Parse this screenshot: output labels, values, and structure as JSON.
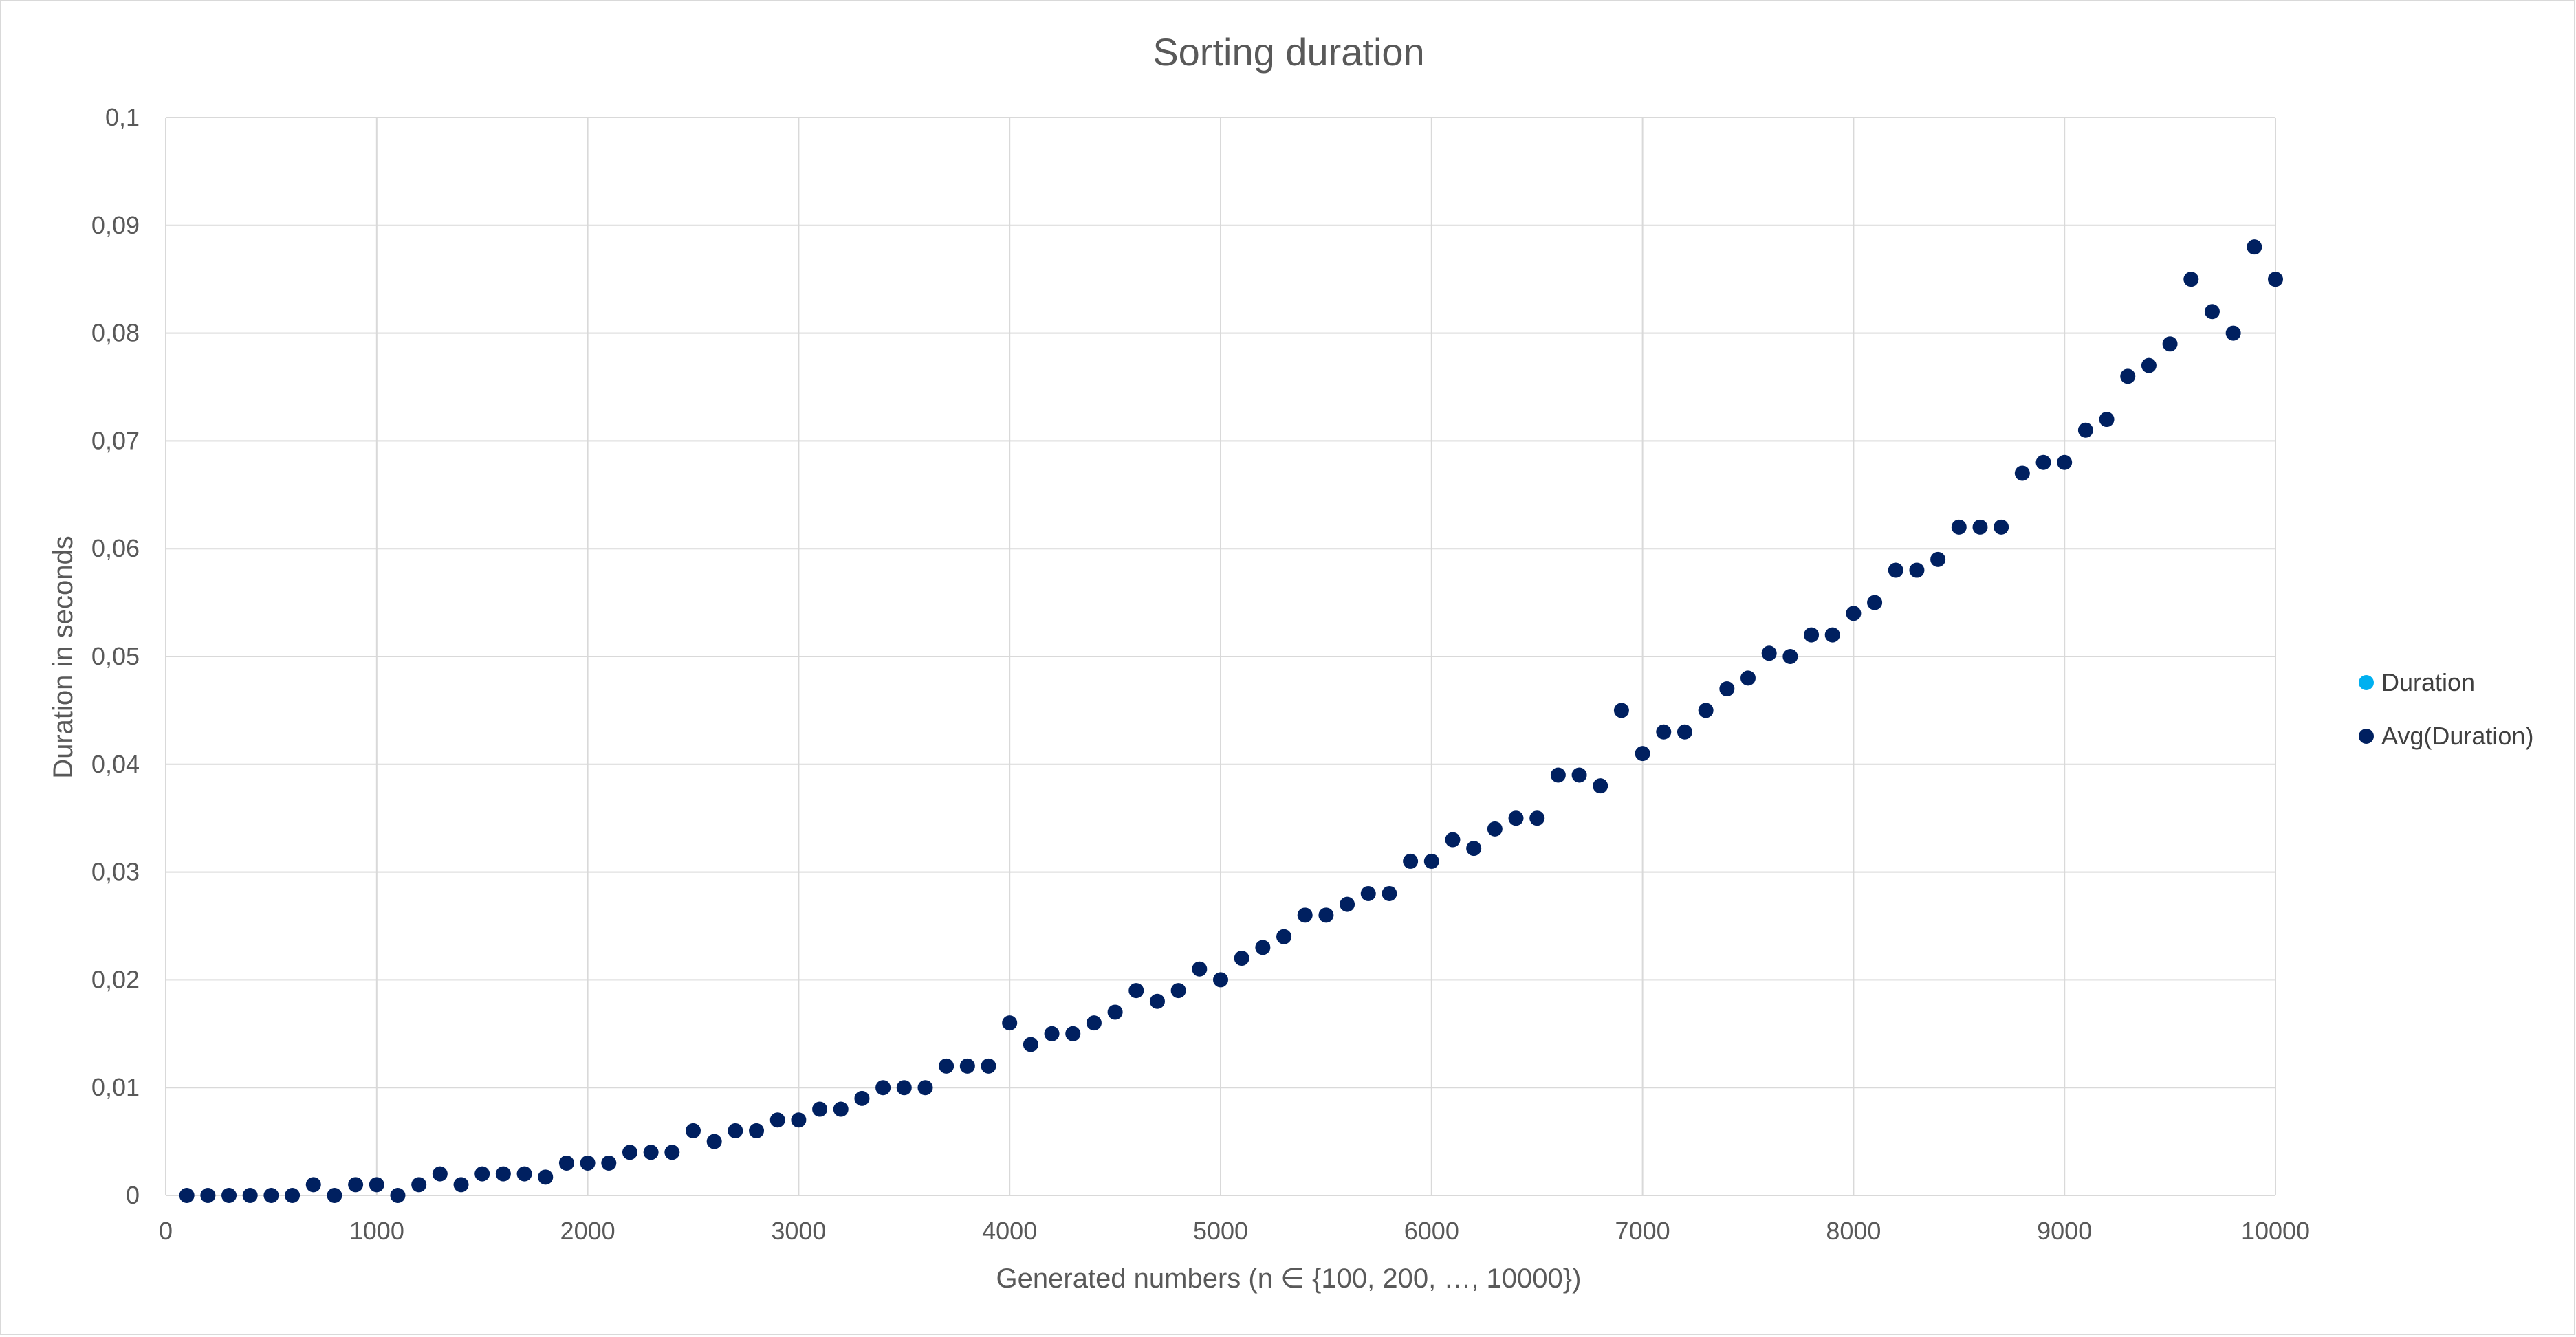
{
  "chart_data": {
    "type": "scatter",
    "title": "Sorting duration",
    "xlabel": "Generated numbers (n ∈ {100, 200, …, 10000})",
    "ylabel": "Duration in seconds",
    "xlim": [
      0,
      10000
    ],
    "ylim": [
      0,
      0.1
    ],
    "x_ticks": [
      0,
      1000,
      2000,
      3000,
      4000,
      5000,
      6000,
      7000,
      8000,
      9000,
      10000
    ],
    "x_tick_labels": [
      "0",
      "1000",
      "2000",
      "3000",
      "4000",
      "5000",
      "6000",
      "7000",
      "8000",
      "9000",
      "10000"
    ],
    "y_ticks": [
      0,
      0.01,
      0.02,
      0.03,
      0.04,
      0.05,
      0.06,
      0.07,
      0.08,
      0.09,
      0.1
    ],
    "y_tick_labels": [
      "0",
      "0,01",
      "0,02",
      "0,03",
      "0,04",
      "0,05",
      "0,06",
      "0,07",
      "0,08",
      "0,09",
      "0,1"
    ],
    "grid": "both",
    "legend_position": "right",
    "series": [
      {
        "name": "Duration",
        "color": "#00b0f0",
        "x": [],
        "y": []
      },
      {
        "name": "Avg(Duration)",
        "color": "#002060",
        "x": [
          100,
          200,
          300,
          400,
          500,
          600,
          700,
          800,
          900,
          1000,
          1100,
          1200,
          1300,
          1400,
          1500,
          1600,
          1700,
          1800,
          1900,
          2000,
          2100,
          2200,
          2300,
          2400,
          2500,
          2600,
          2700,
          2800,
          2900,
          3000,
          3100,
          3200,
          3300,
          3400,
          3500,
          3600,
          3700,
          3800,
          3900,
          4000,
          4100,
          4200,
          4300,
          4400,
          4500,
          4600,
          4700,
          4800,
          4900,
          5000,
          5100,
          5200,
          5300,
          5400,
          5500,
          5600,
          5700,
          5800,
          5900,
          6000,
          6100,
          6200,
          6300,
          6400,
          6500,
          6600,
          6700,
          6800,
          6900,
          7000,
          7100,
          7200,
          7300,
          7400,
          7500,
          7600,
          7700,
          7800,
          7900,
          8000,
          8100,
          8200,
          8300,
          8400,
          8500,
          8600,
          8700,
          8800,
          8900,
          9000,
          9100,
          9200,
          9300,
          9400,
          9500,
          9600,
          9700,
          9800,
          9900,
          10000
        ],
        "y": [
          0,
          0,
          0,
          0,
          0,
          0,
          0.001,
          0,
          0.001,
          0.001,
          0,
          0.001,
          0.002,
          0.001,
          0.002,
          0.002,
          0.002,
          0.0017,
          0.003,
          0.003,
          0.003,
          0.004,
          0.004,
          0.004,
          0.006,
          0.005,
          0.006,
          0.006,
          0.007,
          0.007,
          0.008,
          0.008,
          0.009,
          0.01,
          0.01,
          0.01,
          0.012,
          0.012,
          0.012,
          0.016,
          0.014,
          0.015,
          0.015,
          0.016,
          0.017,
          0.019,
          0.018,
          0.019,
          0.021,
          0.02,
          0.022,
          0.023,
          0.024,
          0.026,
          0.026,
          0.027,
          0.028,
          0.028,
          0.031,
          0.031,
          0.033,
          0.0322,
          0.034,
          0.035,
          0.035,
          0.039,
          0.039,
          0.038,
          0.045,
          0.041,
          0.043,
          0.043,
          0.045,
          0.047,
          0.048,
          0.0503,
          0.05,
          0.052,
          0.052,
          0.054,
          0.055,
          0.058,
          0.058,
          0.059,
          0.062,
          0.062,
          0.062,
          0.067,
          0.068,
          0.068,
          0.071,
          0.072,
          0.076,
          0.077,
          0.079,
          0.085,
          0.082,
          0.08,
          0.088,
          0.085
        ]
      }
    ]
  }
}
